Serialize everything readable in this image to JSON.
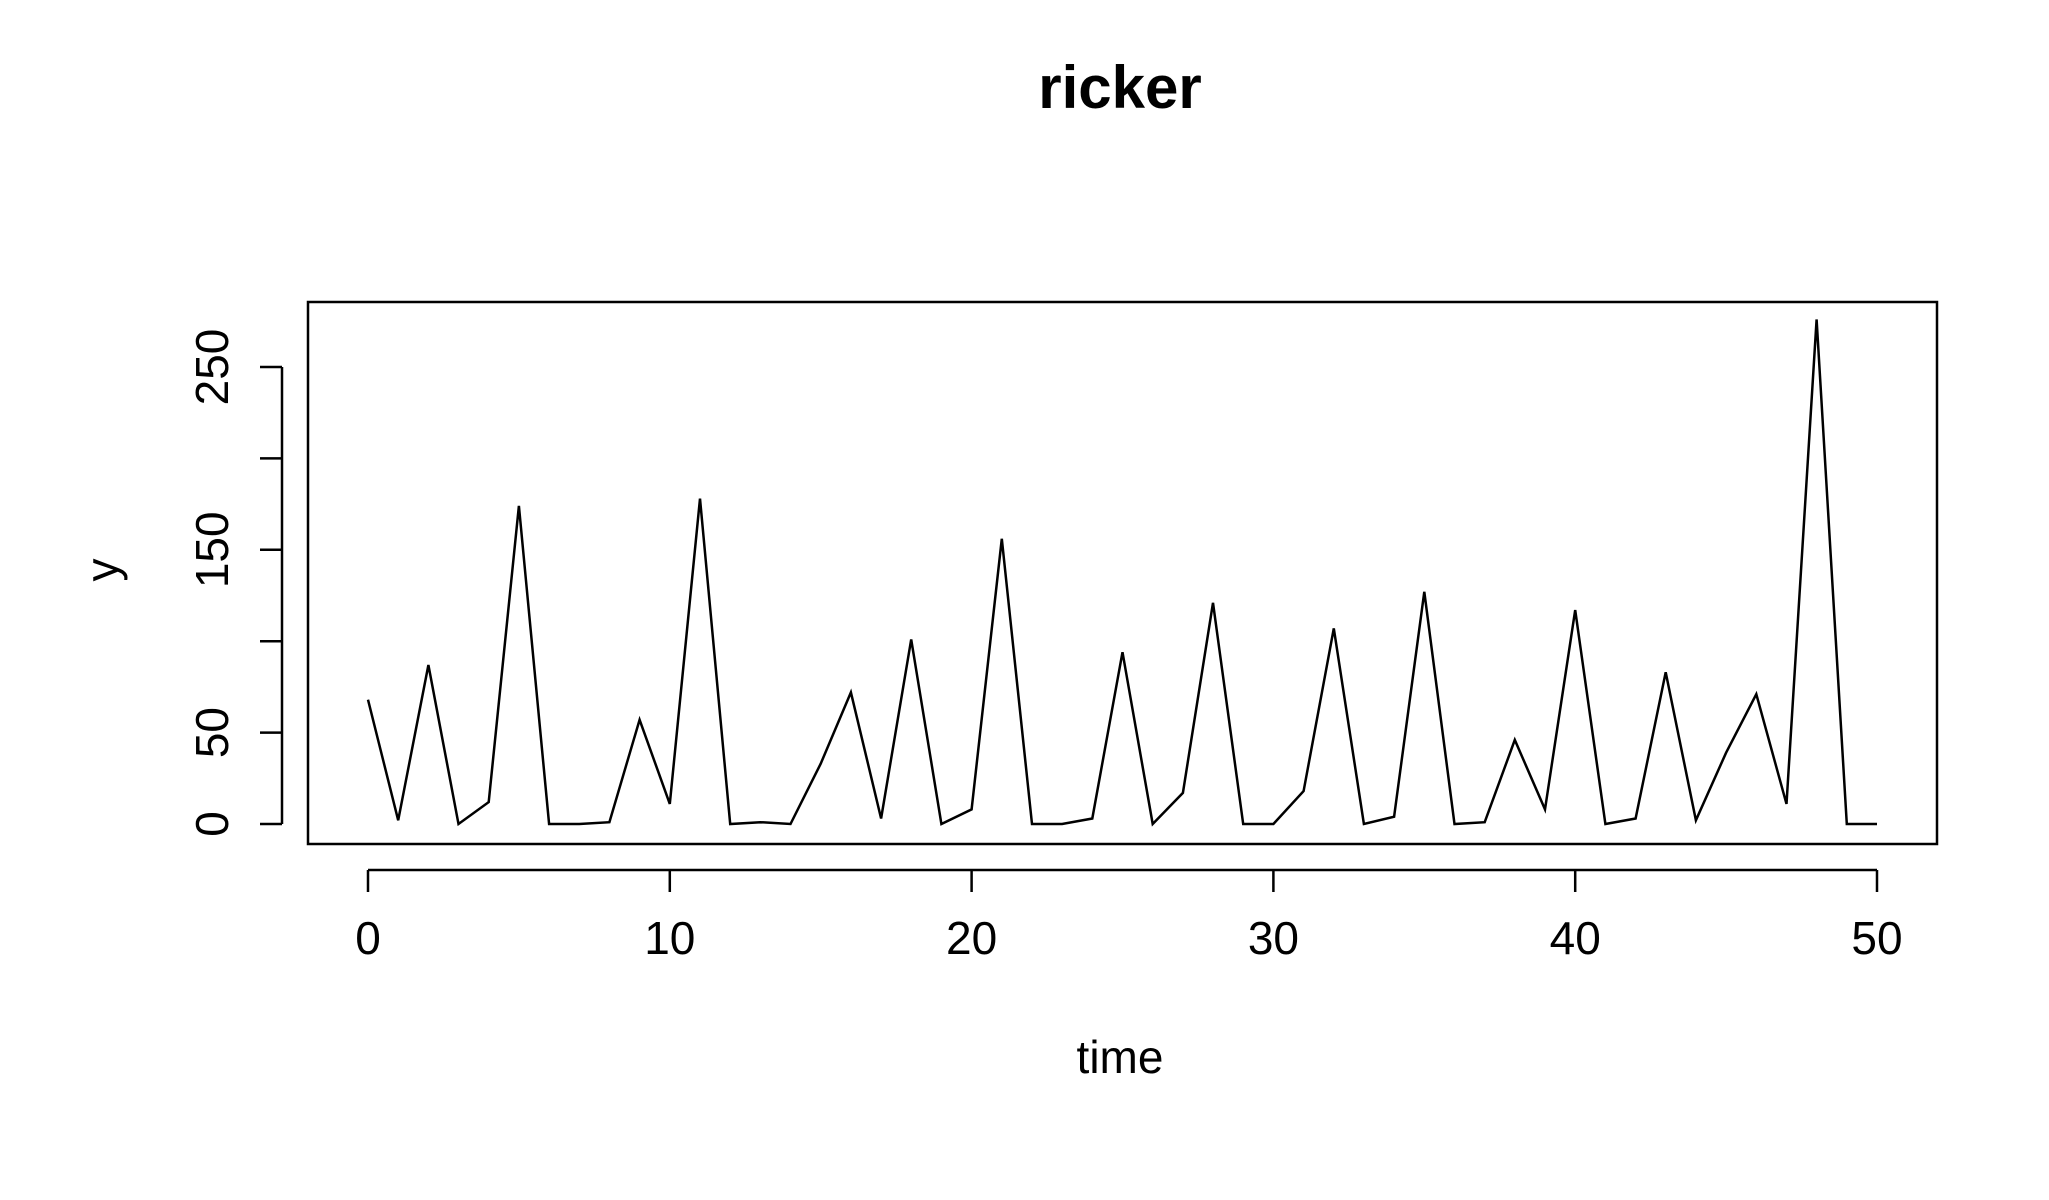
{
  "chart_data": {
    "type": "line",
    "title": "ricker",
    "xlabel": "time",
    "ylabel": "y",
    "xlim": [
      0,
      50
    ],
    "ylim": [
      0,
      280
    ],
    "x_ticks": [
      0,
      10,
      20,
      30,
      40,
      50
    ],
    "x_tick_labels": [
      "0",
      "10",
      "20",
      "30",
      "40",
      "50"
    ],
    "y_ticks": [
      0,
      50,
      100,
      150,
      200,
      250
    ],
    "y_tick_labels": [
      "0",
      "50",
      "",
      "150",
      "",
      "250"
    ],
    "grid": false,
    "legend": "none",
    "line_color": "#000000",
    "series": [
      {
        "x": [
          0,
          1,
          2,
          3,
          4,
          5,
          6,
          7,
          8,
          9,
          10,
          11,
          12,
          13,
          14,
          15,
          16,
          17,
          18,
          19,
          20,
          21,
          22,
          23,
          24,
          25,
          26,
          27,
          28,
          29,
          30,
          31,
          32,
          33,
          34,
          35,
          36,
          37,
          38,
          39,
          40,
          41,
          42,
          43,
          44,
          45,
          46,
          47,
          48,
          49,
          50
        ],
        "values": [
          68,
          2,
          87,
          0,
          12,
          174,
          0,
          0,
          1,
          57,
          11,
          178,
          0,
          1,
          0,
          33,
          72,
          3,
          101,
          0,
          8,
          156,
          0,
          0,
          3,
          94,
          0,
          17,
          121,
          0,
          0,
          18,
          107,
          0,
          4,
          127,
          0,
          1,
          46,
          8,
          117,
          0,
          3,
          83,
          2,
          39,
          71,
          11,
          276,
          0,
          0
        ]
      }
    ]
  }
}
